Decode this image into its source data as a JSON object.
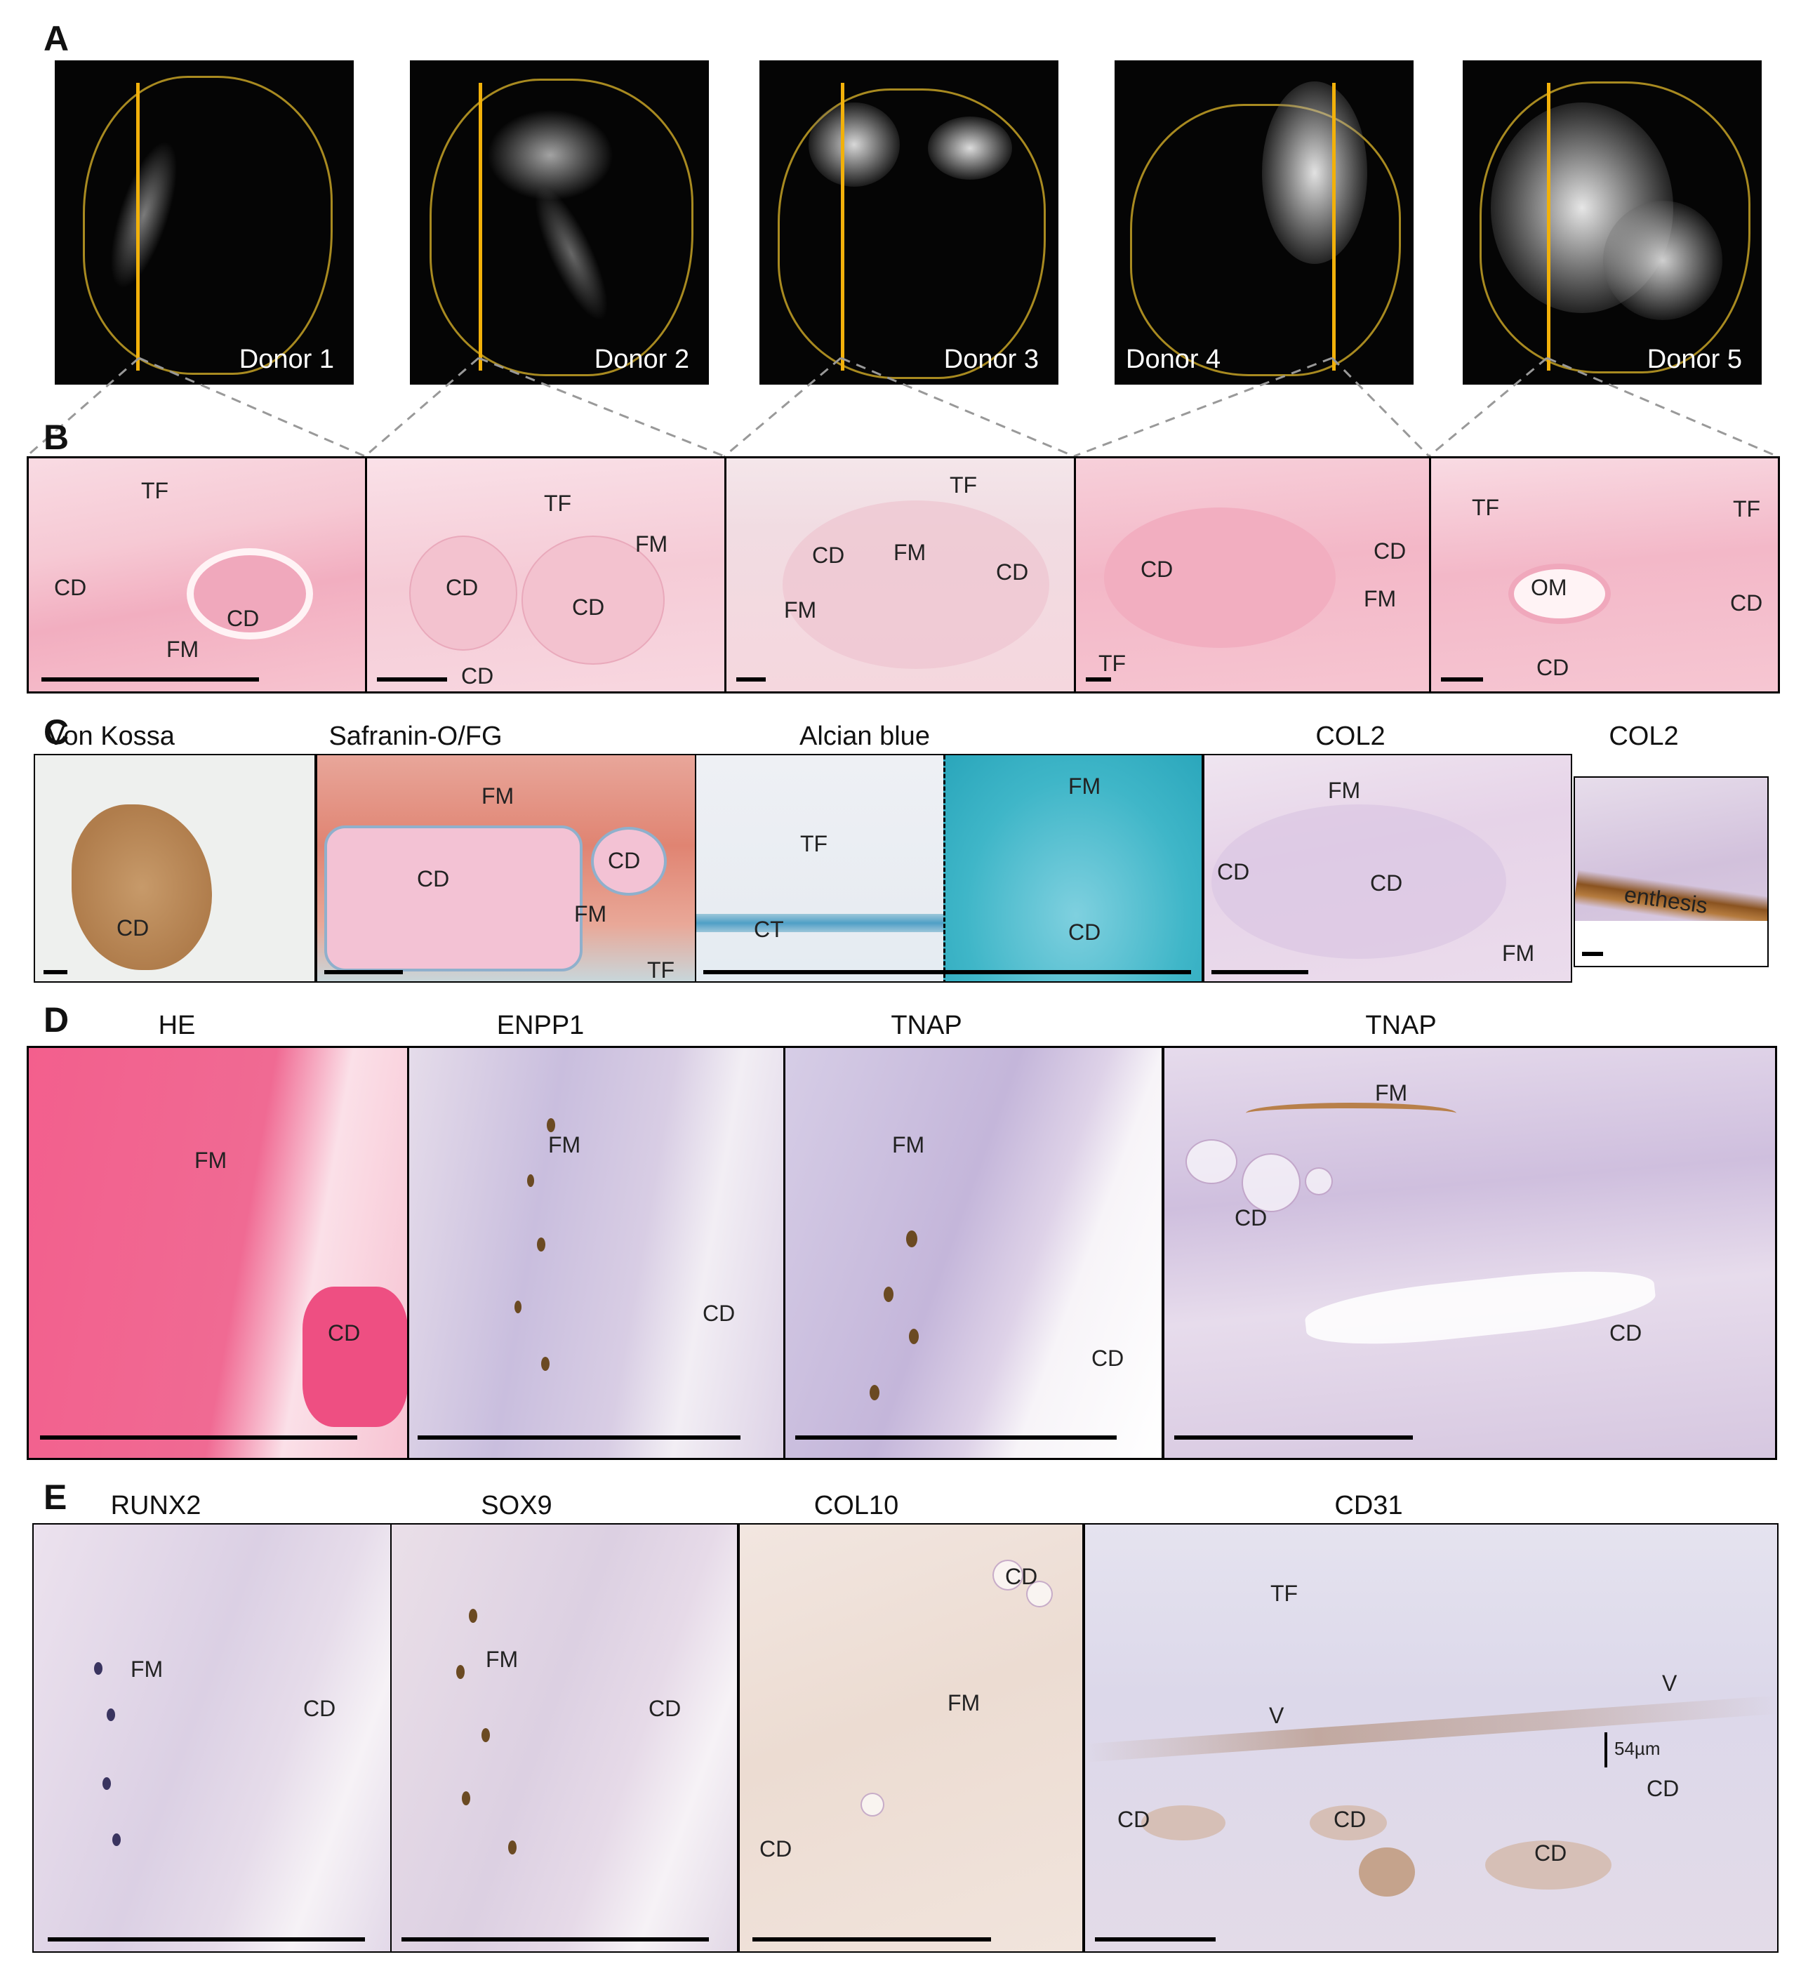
{
  "panel_letters": {
    "a": "A",
    "b": "B",
    "c": "C",
    "d": "D",
    "e": "E"
  },
  "panel_a": {
    "donors": [
      "Donor 1",
      "Donor 2",
      "Donor 3",
      "Donor 4",
      "Donor 5"
    ]
  },
  "panel_b": {
    "p1": {
      "tf": "TF",
      "cd1": "CD",
      "cd2": "CD",
      "fm": "FM"
    },
    "p2": {
      "tf": "TF",
      "fm": "FM",
      "cd1": "CD",
      "cd2": "CD",
      "cd3": "CD"
    },
    "p3": {
      "tf": "TF",
      "cd1": "CD",
      "fm1": "FM",
      "cd2": "CD",
      "fm2": "FM"
    },
    "p4": {
      "cd1": "CD",
      "cd2": "CD",
      "fm": "FM",
      "tf": "TF"
    },
    "p5": {
      "tf1": "TF",
      "tf2": "TF",
      "om": "OM",
      "cd1": "CD",
      "cd2": "CD"
    }
  },
  "panel_c": {
    "titles": [
      "Von Kossa",
      "Safranin-O/FG",
      "Alcian blue",
      "COL2",
      "COL2"
    ],
    "p1": {
      "cd": "CD"
    },
    "p2": {
      "fm1": "FM",
      "cd1": "CD",
      "cd2": "CD",
      "fm2": "FM",
      "tf": "TF"
    },
    "p3": {
      "tf": "TF",
      "ct": "CT",
      "fm": "FM",
      "cd": "CD"
    },
    "p4": {
      "fm1": "FM",
      "cd1": "CD",
      "cd2": "CD",
      "fm2": "FM"
    },
    "p5": {
      "enthesis": "enthesis"
    }
  },
  "panel_d": {
    "titles": [
      "HE",
      "ENPP1",
      "TNAP",
      "TNAP"
    ],
    "p1": {
      "fm": "FM",
      "cd": "CD"
    },
    "p2": {
      "fm": "FM",
      "cd": "CD"
    },
    "p3": {
      "fm": "FM",
      "cd": "CD"
    },
    "p4": {
      "fm": "FM",
      "cd1": "CD",
      "cd2": "CD"
    }
  },
  "panel_e": {
    "titles": [
      "RUNX2",
      "SOX9",
      "COL10",
      "CD31"
    ],
    "p1": {
      "fm": "FM",
      "cd": "CD"
    },
    "p2": {
      "fm": "FM",
      "cd": "CD"
    },
    "p3": {
      "cd1": "CD",
      "fm": "FM",
      "cd2": "CD"
    },
    "p4": {
      "tf": "TF",
      "v1": "V",
      "v2": "V",
      "measure": "54µm",
      "cd1": "CD",
      "cd2": "CD",
      "cd3": "CD",
      "cd4": "CD"
    }
  },
  "colors": {
    "he_pink": "#f4b6c6",
    "ct_outline": "#a88a20",
    "cut_line": "#f2b10a",
    "alcian_blue": "#3fb6c8",
    "ihc_lilac": "#dcc7e4",
    "dab_brown": "#7a4a1c"
  }
}
